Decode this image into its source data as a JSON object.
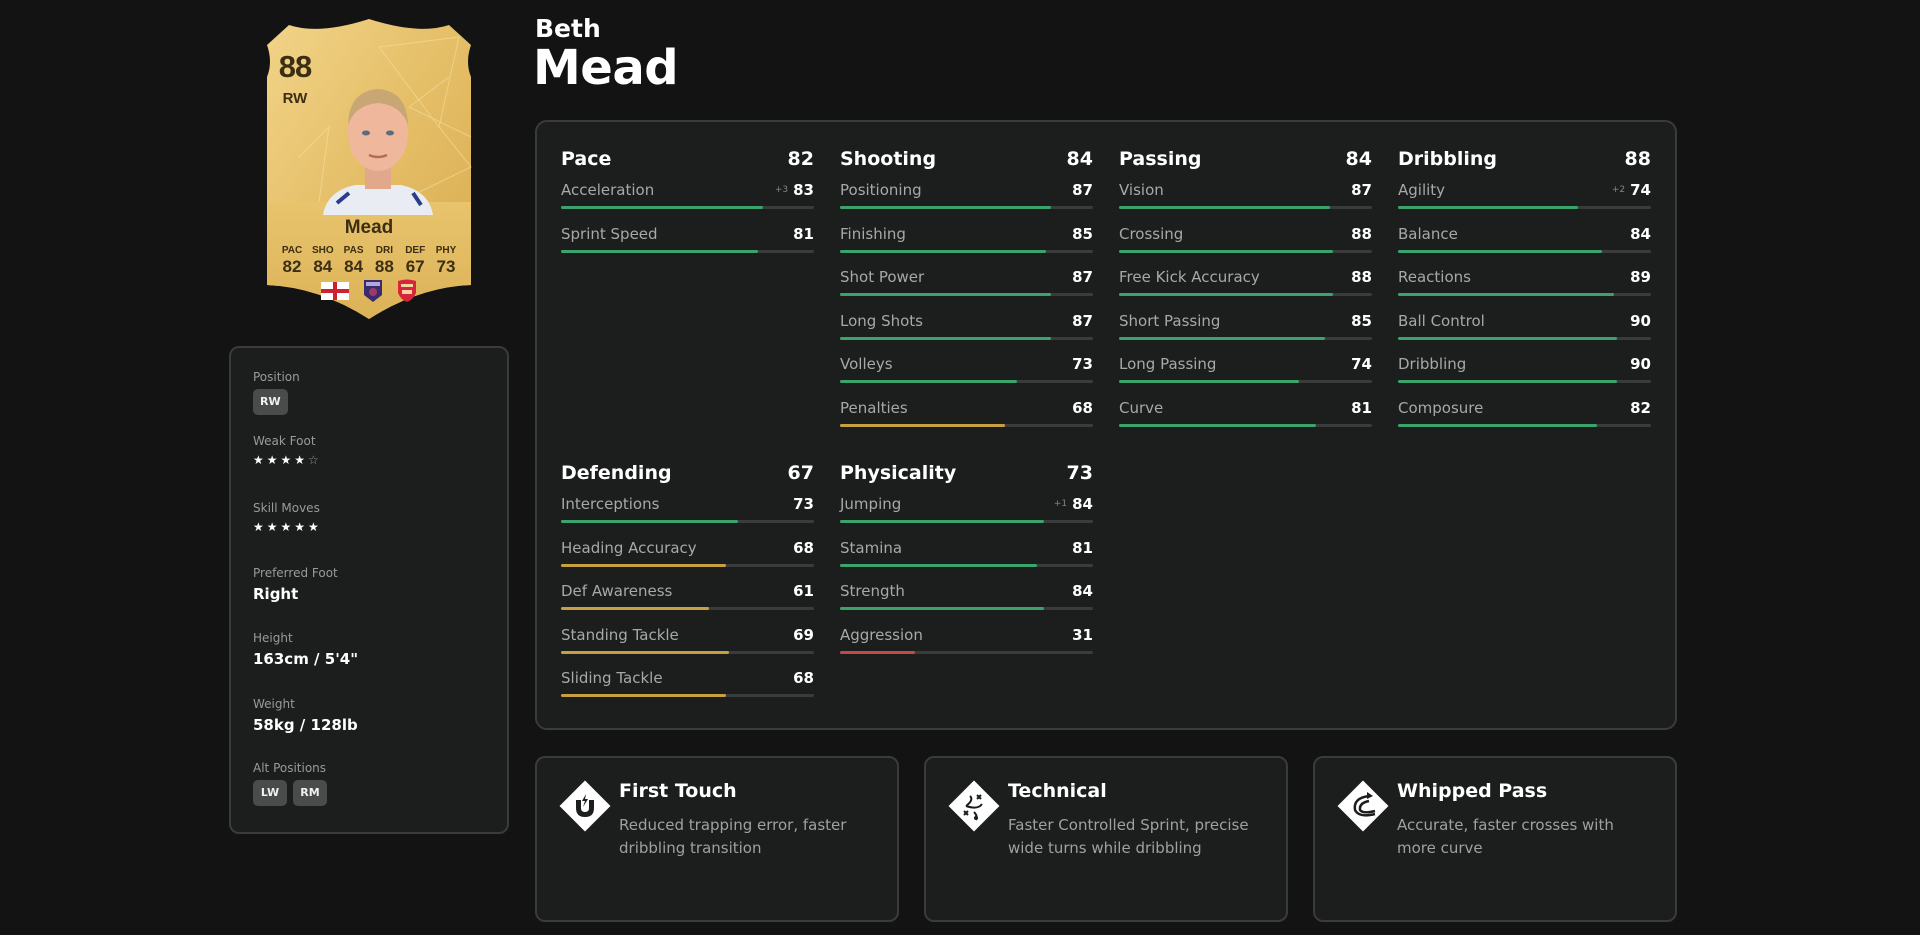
{
  "player": {
    "first_name": "Beth",
    "last_name": "Mead"
  },
  "card": {
    "rating": "88",
    "position": "RW",
    "name": "Mead",
    "stats": [
      {
        "label": "PAC",
        "value": "82"
      },
      {
        "label": "SHO",
        "value": "84"
      },
      {
        "label": "PAS",
        "value": "84"
      },
      {
        "label": "DRI",
        "value": "88"
      },
      {
        "label": "DEF",
        "value": "67"
      },
      {
        "label": "PHY",
        "value": "73"
      }
    ],
    "nation": "england-flag-icon",
    "league": "league-badge-icon",
    "club": "arsenal-badge-icon"
  },
  "info": {
    "position_label": "Position",
    "position_value": "RW",
    "weak_foot_label": "Weak Foot",
    "weak_foot_stars": 4,
    "skill_moves_label": "Skill Moves",
    "skill_moves_stars": 5,
    "preferred_foot_label": "Preferred Foot",
    "preferred_foot_value": "Right",
    "height_label": "Height",
    "height_value": "163cm / 5'4\"",
    "weight_label": "Weight",
    "weight_value": "58kg / 128lb",
    "alt_positions_label": "Alt Positions",
    "alt_positions": [
      "LW",
      "RM"
    ]
  },
  "colors": {
    "high": "#3aa46c",
    "mid": "#c9a040",
    "low": "#c24a4a",
    "track": "#3a3b3b",
    "panel": "#1c1d1d",
    "border": "#3a3b3b",
    "background": "#131313"
  },
  "stat_groups": [
    {
      "title": "Pace",
      "total": "82",
      "attrs": [
        {
          "name": "Acceleration",
          "value": 83,
          "boost": "+3"
        },
        {
          "name": "Sprint Speed",
          "value": 81,
          "boost": ""
        }
      ]
    },
    {
      "title": "Shooting",
      "total": "84",
      "attrs": [
        {
          "name": "Positioning",
          "value": 87,
          "boost": ""
        },
        {
          "name": "Finishing",
          "value": 85,
          "boost": ""
        },
        {
          "name": "Shot Power",
          "value": 87,
          "boost": ""
        },
        {
          "name": "Long Shots",
          "value": 87,
          "boost": ""
        },
        {
          "name": "Volleys",
          "value": 73,
          "boost": ""
        },
        {
          "name": "Penalties",
          "value": 68,
          "boost": ""
        }
      ]
    },
    {
      "title": "Passing",
      "total": "84",
      "attrs": [
        {
          "name": "Vision",
          "value": 87,
          "boost": ""
        },
        {
          "name": "Crossing",
          "value": 88,
          "boost": ""
        },
        {
          "name": "Free Kick Accuracy",
          "value": 88,
          "boost": ""
        },
        {
          "name": "Short Passing",
          "value": 85,
          "boost": ""
        },
        {
          "name": "Long Passing",
          "value": 74,
          "boost": ""
        },
        {
          "name": "Curve",
          "value": 81,
          "boost": ""
        }
      ]
    },
    {
      "title": "Dribbling",
      "total": "88",
      "attrs": [
        {
          "name": "Agility",
          "value": 74,
          "boost": "+2"
        },
        {
          "name": "Balance",
          "value": 84,
          "boost": ""
        },
        {
          "name": "Reactions",
          "value": 89,
          "boost": ""
        },
        {
          "name": "Ball Control",
          "value": 90,
          "boost": ""
        },
        {
          "name": "Dribbling",
          "value": 90,
          "boost": ""
        },
        {
          "name": "Composure",
          "value": 82,
          "boost": ""
        }
      ]
    },
    {
      "title": "Defending",
      "total": "67",
      "attrs": [
        {
          "name": "Interceptions",
          "value": 73,
          "boost": ""
        },
        {
          "name": "Heading Accuracy",
          "value": 68,
          "boost": ""
        },
        {
          "name": "Def Awareness",
          "value": 61,
          "boost": ""
        },
        {
          "name": "Standing Tackle",
          "value": 69,
          "boost": ""
        },
        {
          "name": "Sliding Tackle",
          "value": 68,
          "boost": ""
        }
      ]
    },
    {
      "title": "Physicality",
      "total": "73",
      "attrs": [
        {
          "name": "Jumping",
          "value": 84,
          "boost": "+1"
        },
        {
          "name": "Stamina",
          "value": 81,
          "boost": ""
        },
        {
          "name": "Strength",
          "value": 84,
          "boost": ""
        },
        {
          "name": "Aggression",
          "value": 31,
          "boost": ""
        }
      ]
    }
  ],
  "playstyles": [
    {
      "title": "First Touch",
      "description": "Reduced trapping error, faster dribbling transition",
      "icon": "first-touch-icon"
    },
    {
      "title": "Technical",
      "description": "Faster Controlled Sprint, precise wide turns while dribbling",
      "icon": "technical-icon"
    },
    {
      "title": "Whipped Pass",
      "description": "Accurate, faster crosses with more curve",
      "icon": "whipped-pass-icon"
    }
  ]
}
